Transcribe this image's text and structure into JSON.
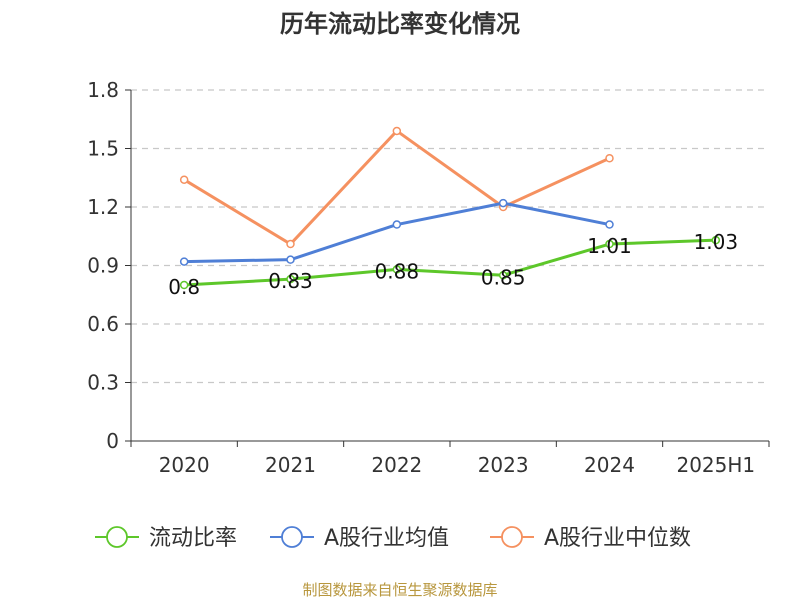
{
  "chart_data": {
    "type": "line",
    "title": "历年流动比率变化情况",
    "categories": [
      "2020",
      "2021",
      "2022",
      "2023",
      "2024",
      "2025H1"
    ],
    "ylim": [
      0,
      1.8
    ],
    "yticks": [
      "0",
      "0.3",
      "0.6",
      "0.9",
      "1.2",
      "1.5",
      "1.8"
    ],
    "grid": true,
    "legend_position": "bottom",
    "series": [
      {
        "name": "流动比率",
        "color": "#5dc72a",
        "values": [
          0.8,
          0.83,
          0.88,
          0.85,
          1.01,
          1.03
        ],
        "data_labels": [
          "0.8",
          "0.83",
          "0.88",
          "0.85",
          "1.01",
          "1.03"
        ]
      },
      {
        "name": "A股行业均值",
        "color": "#4f7fd6",
        "values": [
          0.92,
          0.93,
          1.11,
          1.22,
          1.11,
          null
        ]
      },
      {
        "name": "A股行业中位数",
        "color": "#f59160",
        "values": [
          1.34,
          1.01,
          1.59,
          1.2,
          1.45,
          null
        ]
      }
    ],
    "source": "制图数据来自恒生聚源数据库",
    "source_color": "#b8973e"
  }
}
